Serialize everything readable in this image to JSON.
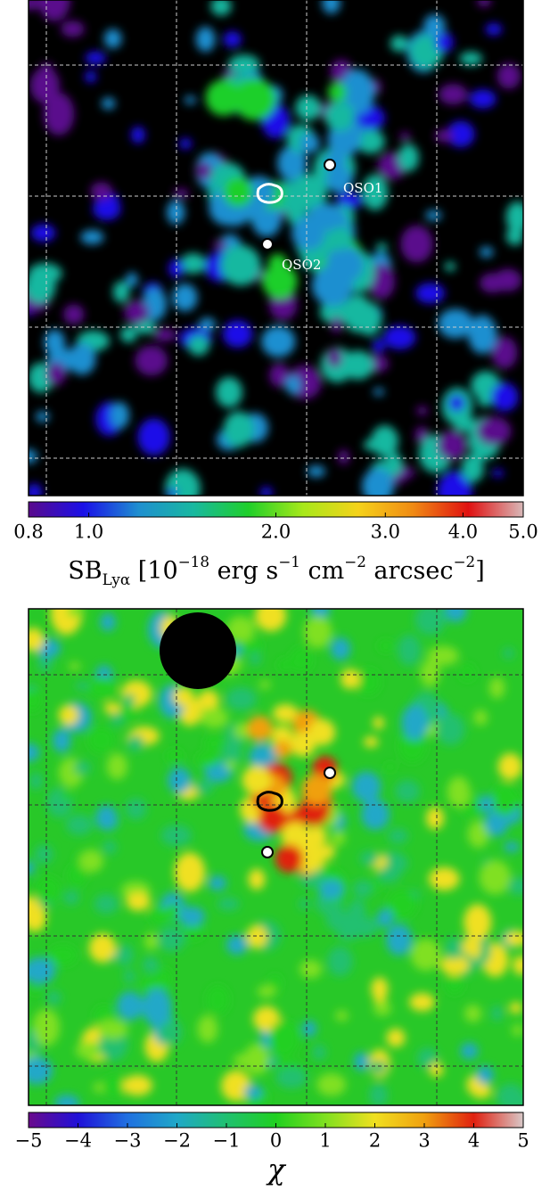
{
  "chart_data": [
    {
      "type": "colorbar",
      "log_scale": true,
      "xlabel": [
        "SB",
        "Lyα",
        " [10",
        "−18",
        " erg s",
        "−1",
        " cm",
        "−2",
        " arcsec",
        "−2",
        "]"
      ],
      "xlim": [
        0.8,
        5.0
      ],
      "xticks": [
        0.8,
        {
          "value": 1,
          "label": "1.0"
        },
        {
          "value": 2,
          "label": "2.0"
        },
        {
          "value": 3,
          "label": "3.0"
        },
        {
          "value": 4,
          "label": "4.0"
        },
        {
          "value": 5,
          "label": "5.0"
        }
      ],
      "colors": [
        "#5a0a8c",
        "#1a10e8",
        "#1f8fd0",
        "#18b8a0",
        "#1fcf2a",
        "#a8e81a",
        "#f5d21a",
        "#f08a14",
        "#e01010",
        "#d8b8b8"
      ],
      "annotations": [
        "QSO1",
        "QSO2"
      ]
    },
    {
      "type": "colorbar",
      "log_scale": false,
      "xlabel": [
        "χ"
      ],
      "xlim": [
        -5,
        5
      ],
      "xticks": [
        {
          "value": -5,
          "label": "−5"
        },
        {
          "value": -4,
          "label": "−4"
        },
        {
          "value": -3,
          "label": "−3"
        },
        {
          "value": -2,
          "label": "−2"
        },
        {
          "value": -1,
          "label": "−1"
        },
        0,
        1,
        2,
        3,
        4,
        5
      ],
      "colors": [
        "#6a0a8c",
        "#2010d8",
        "#2070e0",
        "#20a8c8",
        "#20c070",
        "#20d020",
        "#80e020",
        "#f0e020",
        "#f0a010",
        "#e02010",
        "#d8c8c8"
      ]
    }
  ]
}
